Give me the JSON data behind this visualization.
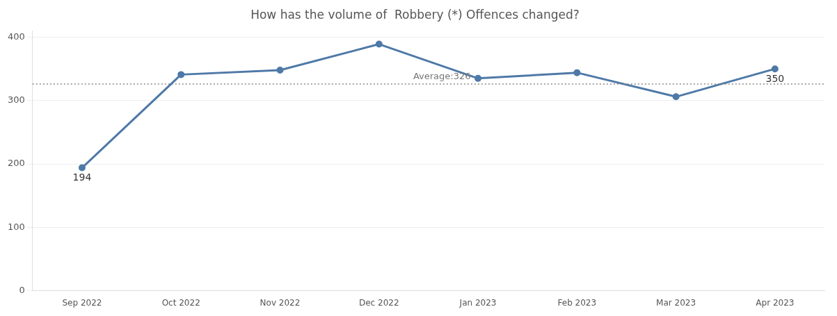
{
  "chart_data": {
    "type": "line",
    "title": "How has the volume of  Robbery (*) Offences changed?",
    "categories": [
      "Sep 2022",
      "Oct 2022",
      "Nov 2022",
      "Dec 2022",
      "Jan 2023",
      "Feb 2023",
      "Mar 2023",
      "Apr 2023"
    ],
    "series": [
      {
        "color": "#4e79a7",
        "values": [
          194,
          341,
          348,
          389,
          335,
          344,
          306,
          350
        ],
        "value_labels": [
          "194",
          null,
          null,
          null,
          null,
          null,
          null,
          "350"
        ]
      }
    ],
    "ylim": [
      0,
      410
    ],
    "yticks": [
      0,
      100,
      200,
      300,
      400
    ],
    "grid": "y",
    "legend": false,
    "marker": "circle",
    "line_style": "solid",
    "ref_lines": [
      {
        "axis": "y",
        "value": 326,
        "label": "Average:326",
        "color": "#888888",
        "line_style": "dotted"
      }
    ]
  }
}
